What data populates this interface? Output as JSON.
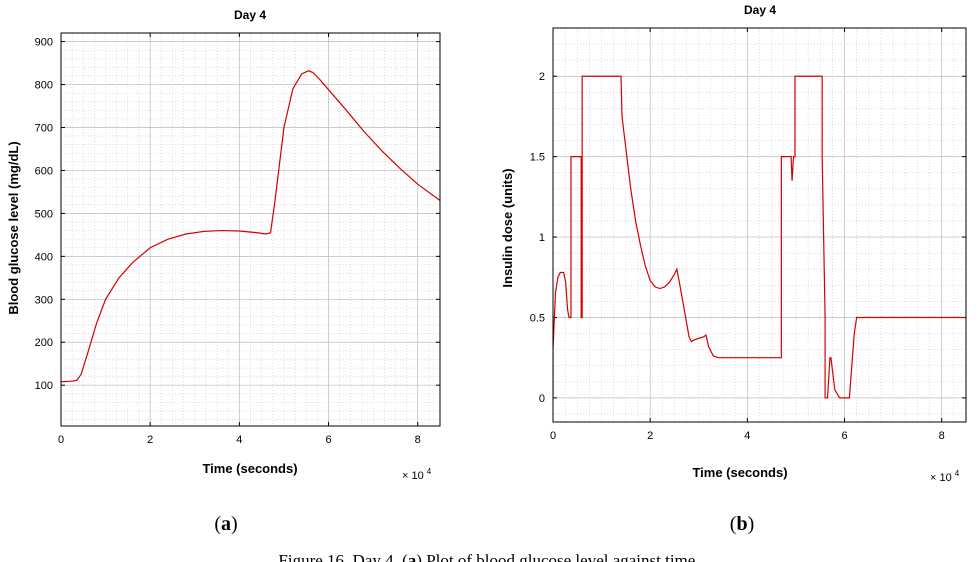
{
  "chart_data": [
    {
      "type": "line",
      "title": "Day 4",
      "xlabel": "Time (seconds)",
      "ylabel": "Blood glucose level (mg/dL)",
      "x_multiplier": "× 10^4",
      "x_multiplier_base": "× 10",
      "x_multiplier_exp": "4",
      "xlim": [
        0,
        85000
      ],
      "ylim": [
        5,
        920
      ],
      "xticks": [
        0,
        20000,
        40000,
        60000,
        80000
      ],
      "xtick_labels": [
        "0",
        "2",
        "4",
        "6",
        "8"
      ],
      "yticks": [
        100,
        200,
        300,
        400,
        500,
        600,
        700,
        800,
        900
      ],
      "ytick_labels": [
        "100",
        "200",
        "300",
        "400",
        "500",
        "600",
        "700",
        "800",
        "900"
      ],
      "grid": true,
      "line_color": "#d40000",
      "series": [
        {
          "x": [
            0,
            2000,
            3500,
            4500,
            6000,
            8000,
            10000,
            13000,
            16000,
            20000,
            24000,
            28000,
            32000,
            36000,
            40000,
            44000,
            46000,
            47000,
            48000,
            50000,
            52000,
            54000,
            55500,
            56500,
            58000,
            60000,
            64000,
            68000,
            72000,
            76000,
            80000,
            85000
          ],
          "y": [
            108,
            109,
            111,
            125,
            175,
            245,
            300,
            350,
            385,
            420,
            440,
            452,
            458,
            460,
            459,
            455,
            452,
            455,
            530,
            700,
            790,
            825,
            832,
            828,
            812,
            788,
            740,
            690,
            645,
            605,
            568,
            530
          ]
        }
      ]
    },
    {
      "type": "line",
      "title": "Day 4",
      "xlabel": "Time (seconds)",
      "ylabel": "Insulin dose (units)",
      "x_multiplier": "× 10^4",
      "x_multiplier_base": "× 10",
      "x_multiplier_exp": "4",
      "xlim": [
        0,
        85000
      ],
      "ylim": [
        -0.15,
        2.3
      ],
      "xticks": [
        0,
        20000,
        40000,
        60000,
        80000
      ],
      "xtick_labels": [
        "0",
        "2",
        "4",
        "6",
        "8"
      ],
      "yticks": [
        0,
        0.5,
        1,
        1.5,
        2
      ],
      "ytick_labels": [
        "0",
        "0.5",
        "1",
        "1.5",
        "2"
      ],
      "grid": true,
      "line_color": "#d40000",
      "series": [
        {
          "x": [
            0,
            0,
            500,
            1000,
            1500,
            2200,
            2600,
            3000,
            3300,
            3700,
            3700,
            4200,
            4200,
            5800,
            5800,
            6000,
            6000,
            6400,
            14000,
            14200,
            15000,
            16000,
            17000,
            18000,
            19000,
            20000,
            21000,
            22000,
            23000,
            24000,
            25000,
            25500,
            26000,
            27000,
            28000,
            28500,
            29000,
            30000,
            31000,
            31500,
            32000,
            33000,
            34000,
            40000,
            45000,
            47000,
            47000,
            49000,
            49000,
            49200,
            49500,
            49800,
            49800,
            55400,
            55400,
            56000,
            56000,
            56500,
            57000,
            57200,
            58000,
            59000,
            60500,
            61000,
            61500,
            62000,
            62500,
            63000,
            70000,
            80000,
            85000
          ],
          "y": [
            0,
            0.3,
            0.65,
            0.75,
            0.78,
            0.78,
            0.72,
            0.55,
            0.5,
            0.5,
            1.5,
            1.5,
            1.5,
            1.5,
            0.5,
            0.5,
            2.0,
            2.0,
            2.0,
            1.75,
            1.55,
            1.3,
            1.1,
            0.95,
            0.82,
            0.73,
            0.69,
            0.68,
            0.69,
            0.72,
            0.77,
            0.8,
            0.72,
            0.55,
            0.38,
            0.35,
            0.36,
            0.37,
            0.38,
            0.39,
            0.32,
            0.26,
            0.25,
            0.25,
            0.25,
            0.25,
            1.5,
            1.5,
            1.5,
            1.35,
            1.5,
            1.5,
            2.0,
            2.0,
            1.5,
            0.5,
            0.0,
            0.0,
            0.25,
            0.25,
            0.05,
            0.0,
            0.0,
            0.0,
            0.2,
            0.4,
            0.5,
            0.5,
            0.5,
            0.5,
            0.5
          ]
        }
      ]
    }
  ],
  "panels": {
    "a": {
      "open": "(",
      "letter": "a",
      "close": ")"
    },
    "b": {
      "open": "(",
      "letter": "b",
      "close": ")"
    }
  },
  "caption": {
    "prefix": "Figure 16. Day 4. (",
    "letter": "a",
    "suffix": ") Plot of blood glucose level against time."
  }
}
